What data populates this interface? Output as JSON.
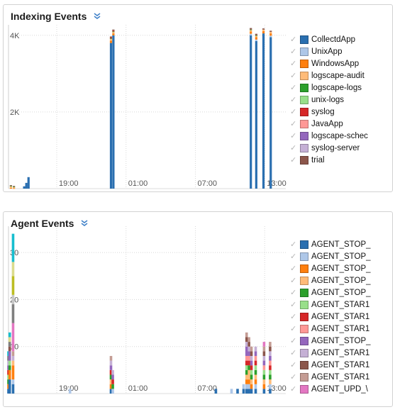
{
  "indexing": {
    "title": "Indexing Events",
    "legend": [
      {
        "label": "CollectdApp",
        "color": "#2a6fb0"
      },
      {
        "label": "UnixApp",
        "color": "#aec7e8"
      },
      {
        "label": "WindowsApp",
        "color": "#ff7f0e"
      },
      {
        "label": "logscape-audit",
        "color": "#ffbb78"
      },
      {
        "label": "logscape-logs",
        "color": "#2ca02c"
      },
      {
        "label": "unix-logs",
        "color": "#98df8a"
      },
      {
        "label": "syslog",
        "color": "#d62728"
      },
      {
        "label": "JavaApp",
        "color": "#ff9896"
      },
      {
        "label": "logscape-schec",
        "color": "#9467bd"
      },
      {
        "label": "syslog-server",
        "color": "#c5b0d5"
      },
      {
        "label": "trial",
        "color": "#8c564b"
      }
    ]
  },
  "agent": {
    "title": "Agent Events",
    "legend": [
      {
        "label": "AGENT_STOP_",
        "color": "#2a6fb0"
      },
      {
        "label": "AGENT_STOP_",
        "color": "#aec7e8"
      },
      {
        "label": "AGENT_STOP_",
        "color": "#ff7f0e"
      },
      {
        "label": "AGENT_STOP_",
        "color": "#ffbb78"
      },
      {
        "label": "AGENT_STOP_",
        "color": "#2ca02c"
      },
      {
        "label": "AGENT_STAR1",
        "color": "#98df8a"
      },
      {
        "label": "AGENT_STAR1",
        "color": "#d62728"
      },
      {
        "label": "AGENT_STAR1",
        "color": "#ff9896"
      },
      {
        "label": "AGENT_STOP_",
        "color": "#9467bd"
      },
      {
        "label": "AGENT_STAR1",
        "color": "#c5b0d5"
      },
      {
        "label": "AGENT_STAR1",
        "color": "#8c564b"
      },
      {
        "label": "AGENT_STAR1",
        "color": "#c49c94"
      },
      {
        "label": "AGENT_UPD_\\",
        "color": "#e377c2"
      }
    ]
  },
  "check_glyph": "✓",
  "chart_data": [
    {
      "type": "bar",
      "title": "Indexing Events",
      "x_ticks": [
        "19:00",
        "01:00",
        "07:00",
        "13:00"
      ],
      "y_ticks": [
        "2K",
        "4K"
      ],
      "ylim": [
        0,
        4200
      ],
      "stacked": true,
      "series_colors": [
        "#2a6fb0",
        "#aec7e8",
        "#ff7f0e",
        "#ffbb78",
        "#2ca02c",
        "#98df8a",
        "#d62728",
        "#ff9896",
        "#9467bd",
        "#c5b0d5",
        "#8c564b"
      ],
      "bars": [
        {
          "t": 0.2,
          "values": [
            0,
            0,
            20,
            40,
            10,
            0,
            0,
            0,
            0,
            0,
            20
          ]
        },
        {
          "t": 0.45,
          "values": [
            0,
            0,
            10,
            30,
            10,
            0,
            0,
            0,
            0,
            0,
            20
          ]
        },
        {
          "t": 1.3,
          "values": [
            60,
            0,
            0,
            0,
            0,
            0,
            0,
            0,
            0,
            0,
            0
          ]
        },
        {
          "t": 1.48,
          "values": [
            150,
            0,
            0,
            0,
            0,
            0,
            0,
            0,
            0,
            0,
            0
          ]
        },
        {
          "t": 1.66,
          "values": [
            300,
            0,
            0,
            0,
            0,
            0,
            0,
            0,
            0,
            0,
            0
          ]
        },
        {
          "t": 8.5,
          "values": [
            3800,
            0,
            60,
            50,
            10,
            0,
            20,
            0,
            0,
            0,
            30
          ]
        },
        {
          "t": 8.7,
          "values": [
            4000,
            0,
            50,
            40,
            10,
            0,
            20,
            0,
            0,
            0,
            30
          ]
        },
        {
          "t": 20.1,
          "values": [
            4000,
            40,
            60,
            40,
            10,
            0,
            0,
            0,
            0,
            0,
            40
          ]
        },
        {
          "t": 20.55,
          "values": [
            3850,
            40,
            60,
            40,
            10,
            0,
            0,
            0,
            0,
            0,
            40
          ]
        },
        {
          "t": 21.15,
          "values": [
            4050,
            0,
            60,
            40,
            0,
            0,
            0,
            0,
            0,
            0,
            30
          ]
        },
        {
          "t": 21.75,
          "values": [
            3950,
            40,
            60,
            40,
            0,
            0,
            0,
            0,
            0,
            0,
            30
          ]
        }
      ]
    },
    {
      "type": "bar",
      "title": "Agent Events",
      "x_ticks": [
        "19:00",
        "01:00",
        "07:00",
        "13:00"
      ],
      "y_ticks": [
        "10",
        "20",
        "30"
      ],
      "ylim": [
        0,
        35
      ],
      "stacked": true,
      "series_colors": [
        "#2a6fb0",
        "#aec7e8",
        "#ff7f0e",
        "#ffbb78",
        "#2ca02c",
        "#98df8a",
        "#d62728",
        "#ff9896",
        "#9467bd",
        "#c5b0d5",
        "#8c564b",
        "#c49c94",
        "#e377c2",
        "#7f7f7f",
        "#c7c7c7",
        "#bcbd22",
        "#dbdb8d",
        "#17becf"
      ],
      "bars": [
        {
          "t": 0.0,
          "values": [
            1,
            0,
            1,
            0,
            1,
            1,
            1,
            0,
            1,
            1,
            0,
            0,
            0,
            1,
            0,
            0,
            0,
            1
          ]
        },
        {
          "t": 0.1,
          "values": [
            3,
            0,
            2,
            0,
            1,
            1,
            0,
            0,
            2,
            0,
            1,
            0,
            0,
            1,
            0,
            0,
            1,
            1
          ]
        },
        {
          "t": 0.38,
          "values": [
            2,
            1,
            3,
            1,
            0,
            0,
            0,
            0,
            0,
            1,
            0,
            1,
            6,
            4,
            2,
            4,
            3,
            6
          ]
        },
        {
          "t": 5.1,
          "values": [
            0,
            1,
            0,
            0,
            0,
            0,
            0,
            0,
            0,
            0,
            0,
            0,
            0,
            0,
            0,
            0,
            0,
            0
          ]
        },
        {
          "t": 8.5,
          "values": [
            1,
            0,
            1,
            1,
            1,
            0,
            1,
            0,
            1,
            1,
            0,
            1,
            0,
            0,
            0,
            0,
            0,
            0
          ]
        },
        {
          "t": 8.65,
          "values": [
            0,
            1,
            0,
            0,
            1,
            0,
            1,
            0,
            1,
            1,
            0,
            0,
            0,
            0,
            0,
            0,
            0,
            0
          ]
        },
        {
          "t": 17.2,
          "values": [
            1,
            0,
            0,
            0,
            0,
            0,
            0,
            0,
            0,
            0,
            0,
            0,
            0,
            0,
            0,
            0,
            0,
            0
          ]
        },
        {
          "t": 18.5,
          "values": [
            0,
            1,
            0,
            0,
            0,
            0,
            0,
            0,
            0,
            0,
            0,
            0,
            0,
            0,
            0,
            0,
            0,
            0
          ]
        },
        {
          "t": 19.0,
          "values": [
            1,
            0,
            0,
            0,
            0,
            0,
            0,
            0,
            0,
            0,
            0,
            0,
            0,
            0,
            0,
            0,
            0,
            0
          ]
        },
        {
          "t": 19.5,
          "values": [
            1,
            1,
            0,
            0,
            0,
            0,
            0,
            0,
            0,
            0,
            0,
            0,
            0,
            0,
            0,
            0,
            0,
            0
          ]
        },
        {
          "t": 19.75,
          "values": [
            1,
            1,
            1,
            1,
            1,
            1,
            1,
            1,
            2,
            1,
            1,
            1,
            0,
            0,
            0,
            0,
            0,
            0
          ]
        },
        {
          "t": 19.95,
          "values": [
            1,
            1,
            1,
            2,
            1,
            0,
            1,
            1,
            1,
            1,
            1,
            1,
            0,
            0,
            0,
            0,
            0,
            0
          ]
        },
        {
          "t": 20.15,
          "values": [
            1,
            0,
            1,
            1,
            1,
            1,
            1,
            0,
            1,
            1,
            1,
            1,
            0,
            0,
            0,
            0,
            0,
            0
          ]
        },
        {
          "t": 20.5,
          "values": [
            1,
            1,
            1,
            1,
            1,
            1,
            1,
            1,
            1,
            1,
            0,
            0,
            0,
            0,
            0,
            0,
            0,
            0
          ]
        },
        {
          "t": 21.2,
          "values": [
            1,
            0,
            1,
            1,
            1,
            1,
            0,
            1,
            1,
            1,
            1,
            1,
            1,
            0,
            0,
            0,
            0,
            0
          ]
        },
        {
          "t": 21.7,
          "values": [
            1,
            1,
            0,
            1,
            1,
            1,
            1,
            1,
            1,
            1,
            1,
            1,
            0,
            0,
            0,
            0,
            0,
            0
          ]
        }
      ]
    }
  ]
}
